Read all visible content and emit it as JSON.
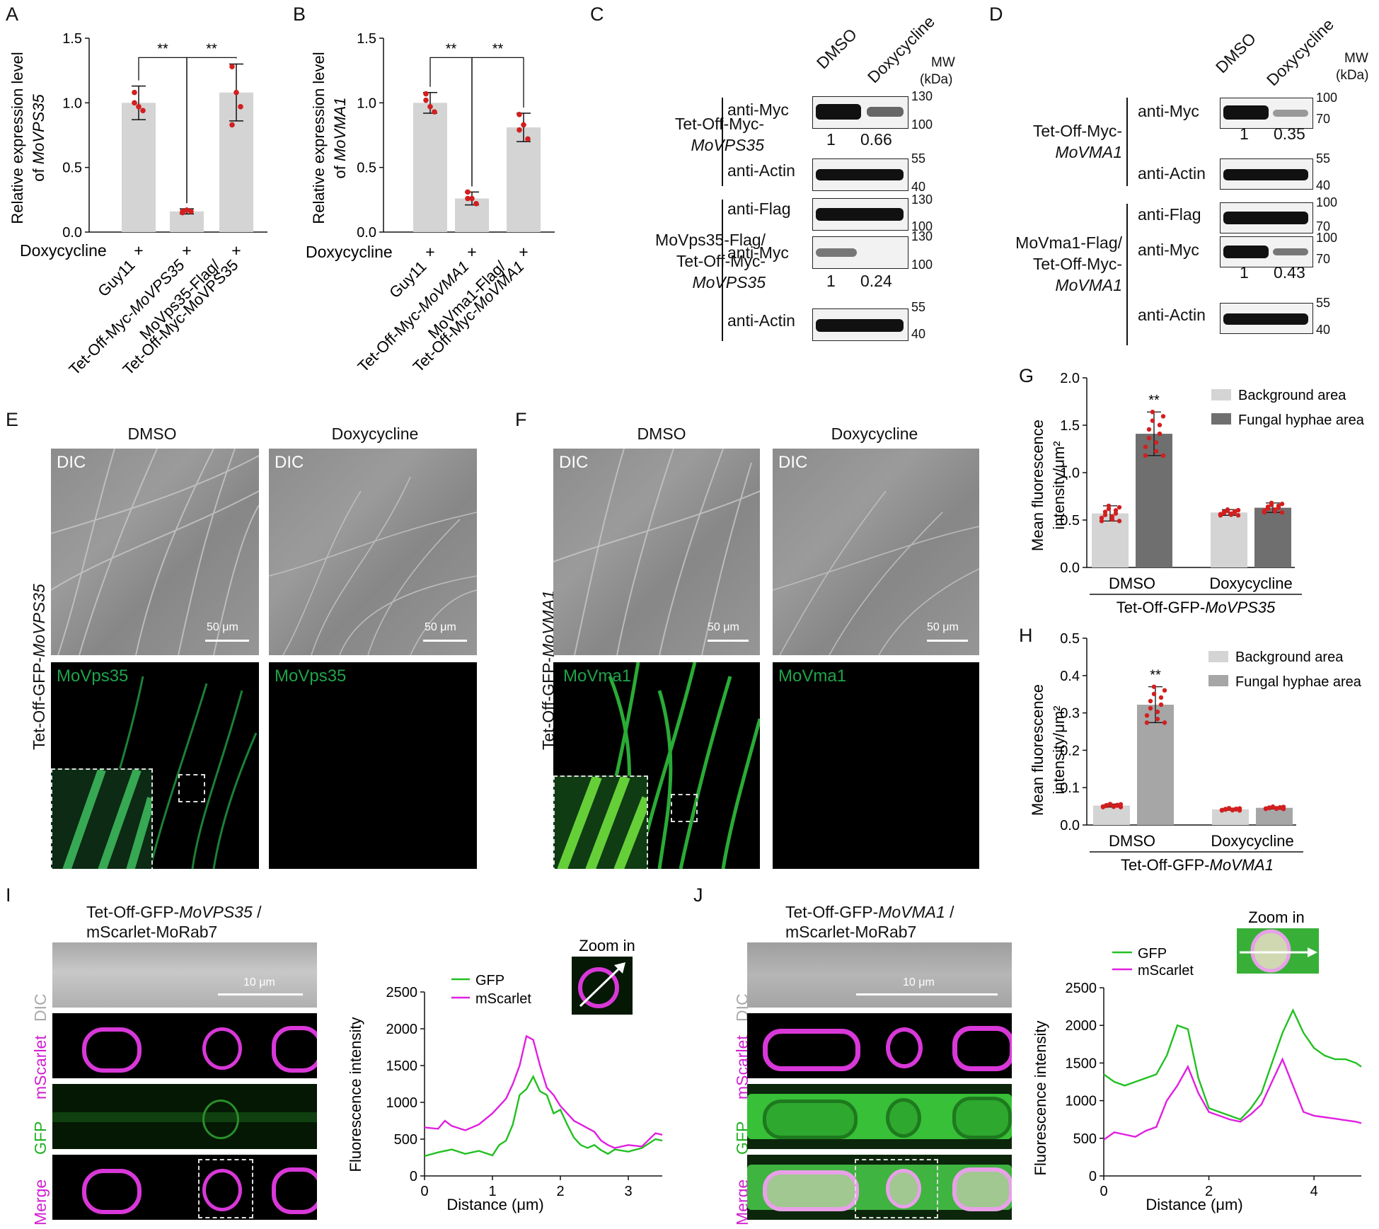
{
  "panels": {
    "A": "A",
    "B": "B",
    "C": "C",
    "D": "D",
    "E": "E",
    "F": "F",
    "G": "G",
    "H": "H",
    "I": "I",
    "J": "J"
  },
  "panelA": {
    "ylabel_line1": "Relative expression level",
    "ylabel_line2_prefix": "of ",
    "ylabel_line2_gene": "MoVPS35",
    "treatment_label": "Doxycycline",
    "treatment_marks": [
      "+",
      "+",
      "+"
    ],
    "sig": [
      "**",
      "**"
    ],
    "cat1": "Guy11",
    "cat2_prefix": "Tet-Off-Myc-",
    "cat2_gene": "MoVPS35",
    "cat3_line1": "MoVps35-Flag/",
    "cat3_line2": "Tet-Off-Myc-MoVPS35",
    "yticks": [
      "0.0",
      "0.5",
      "1.0",
      "1.5"
    ]
  },
  "panelB": {
    "ylabel_line1": "Relative expression level",
    "ylabel_line2_prefix": "of ",
    "ylabel_line2_gene": "MoVMA1",
    "treatment_label": "Doxycycline",
    "treatment_marks": [
      "+",
      "+",
      "+"
    ],
    "sig": [
      "**",
      "**"
    ],
    "cat1": "Guy11",
    "cat2_prefix": "Tet-Off-Myc-",
    "cat2_gene": "MoVMA1",
    "cat3_line1": "MoVma1-Flag/",
    "cat3_line2_prefix": "Tet-Off-Myc-",
    "cat3_line2_gene": "MoVMA1",
    "yticks": [
      "0.0",
      "0.5",
      "1.0",
      "1.5"
    ]
  },
  "panelC": {
    "lanes": [
      "DMSO",
      "Doxycycline"
    ],
    "mw_line1": "MW",
    "mw_line2": "(kDa)",
    "strain1_line1": "Tet-Off-Myc-",
    "strain1_line2": "MoVPS35",
    "strain2_line1": "MoVps35-Flag/",
    "strain2_line2": "Tet-Off-Myc-",
    "strain2_line3": "MoVPS35",
    "blots": [
      {
        "label": "anti-Myc",
        "mw_top": "130",
        "mw_bot": "100",
        "quant": [
          "1",
          "0.66"
        ]
      },
      {
        "label": "anti-Actin",
        "mw_top": "55",
        "mw_bot": "40"
      },
      {
        "label": "anti-Flag",
        "mw_top": "130",
        "mw_bot": "100"
      },
      {
        "label": "anti-Myc",
        "mw_top": "130",
        "mw_bot": "100",
        "quant": [
          "1",
          "0.24"
        ]
      },
      {
        "label": "anti-Actin",
        "mw_top": "55",
        "mw_bot": "40"
      }
    ]
  },
  "panelD": {
    "lanes": [
      "DMSO",
      "Doxycycline"
    ],
    "mw_line1": "MW",
    "mw_line2": "(kDa)",
    "strain1_line1": "Tet-Off-Myc-",
    "strain1_line2": "MoVMA1",
    "strain2_line1": "MoVma1-Flag/",
    "strain2_line2": "Tet-Off-Myc-",
    "strain2_line3": "MoVMA1",
    "blots": [
      {
        "label": "anti-Myc",
        "mw_top": "100",
        "mw_bot": "70",
        "quant": [
          "1",
          "0.35"
        ]
      },
      {
        "label": "anti-Actin",
        "mw_top": "55",
        "mw_bot": "40"
      },
      {
        "label": "anti-Flag",
        "mw_top": "100",
        "mw_bot": "70"
      },
      {
        "label": "anti-Myc",
        "mw_top": "100",
        "mw_bot": "70",
        "quant": [
          "1",
          "0.43"
        ]
      },
      {
        "label": "anti-Actin",
        "mw_top": "55",
        "mw_bot": "40"
      }
    ]
  },
  "panelE": {
    "col1": "DMSO",
    "col2": "Doxycycline",
    "row_label_prefix": "Tet-Off-GFP-",
    "row_label_gene": "MoVPS35",
    "dic": "DIC",
    "protein": "MoVps35",
    "scale": "50 μm"
  },
  "panelF": {
    "col1": "DMSO",
    "col2": "Doxycycline",
    "row_label_prefix": "Tet-Off-GFP-",
    "row_label_gene": "MoVMA1",
    "dic": "DIC",
    "protein": "MoVma1",
    "scale": "50 μm"
  },
  "panelG": {
    "ylabel_line1": "Mean fluorescence",
    "ylabel_line2": "intensity/μm²",
    "legend": [
      "Background area",
      "Fungal hyphae area"
    ],
    "groups": [
      "DMSO",
      "Doxycycline"
    ],
    "strain_prefix": "Tet-Off-GFP-",
    "strain_gene": "MoVPS35",
    "sig": "**",
    "yticks": [
      "0.0",
      "0.5",
      "1.0",
      "1.5",
      "2.0"
    ]
  },
  "panelH": {
    "ylabel_line1": "Mean fluorescence",
    "ylabel_line2": "intensity/μm²",
    "legend": [
      "Background area",
      "Fungal hyphae area"
    ],
    "groups": [
      "DMSO",
      "Doxycycline"
    ],
    "strain_prefix": "Tet-Off-GFP-",
    "strain_gene": "MoVMA1",
    "sig": "**",
    "yticks": [
      "0.0",
      "0.1",
      "0.2",
      "0.3",
      "0.4",
      "0.5"
    ]
  },
  "panelI": {
    "title_prefix": "Tet-Off-GFP-",
    "title_gene": "MoVPS35",
    "title_suffix": " /",
    "title_line2": "mScarlet-MoRab7",
    "channels": [
      "DIC",
      "mScarlet",
      "GFP",
      "Merge"
    ],
    "scale": "10 μm",
    "zoom": "Zoom in",
    "ylabel": "Fluorescence intensity",
    "xlabel": "Distance (μm)",
    "legend": [
      "GFP",
      "mScarlet"
    ],
    "yticks": [
      "0",
      "500",
      "1000",
      "1500",
      "2000",
      "2500"
    ],
    "xticks": [
      "0",
      "1",
      "2",
      "3"
    ]
  },
  "panelJ": {
    "title_prefix": "Tet-Off-GFP-",
    "title_gene": "MoVMA1",
    "title_suffix": " /",
    "title_line2": "mScarlet-MoRab7",
    "channels": [
      "DIC",
      "mScarlet",
      "GFP",
      "Merge"
    ],
    "scale": "10 μm",
    "zoom": "Zoom in",
    "ylabel": "Fluorescence intensity",
    "xlabel": "Distance (μm)",
    "legend": [
      "GFP",
      "mScarlet"
    ],
    "yticks": [
      "0",
      "500",
      "1000",
      "1500",
      "2000",
      "2500"
    ],
    "xticks": [
      "0",
      "2",
      "4"
    ]
  },
  "colors": {
    "bar_light": "#d4d4d4",
    "bar_dark": "#6f6f6f",
    "bar_mid": "#a6a6a6",
    "dots": "#d21f1f",
    "gfp": "#22c022",
    "mscarlet": "#e020e0"
  },
  "chart_data": [
    {
      "type": "bar",
      "panel": "A",
      "categories": [
        "Guy11",
        "Tet-Off-Myc-MoVPS35",
        "MoVps35-Flag/Tet-Off-Myc-MoVPS35"
      ],
      "values": [
        1.0,
        0.16,
        1.08
      ],
      "errors": [
        0.13,
        0.02,
        0.22
      ],
      "points": [
        [
          1.08,
          0.97,
          0.94,
          1.0
        ],
        [
          0.15,
          0.17,
          0.16,
          0.16
        ],
        [
          1.28,
          1.08,
          0.97,
          0.83
        ]
      ],
      "ylim": [
        0,
        1.5
      ]
    },
    {
      "type": "bar",
      "panel": "B",
      "categories": [
        "Guy11",
        "Tet-Off-Myc-MoVMA1",
        "MoVma1-Flag/Tet-Off-Myc-MoVMA1"
      ],
      "values": [
        1.0,
        0.26,
        0.81
      ],
      "errors": [
        0.08,
        0.05,
        0.11
      ],
      "points": [
        [
          1.07,
          0.97,
          0.93,
          1.02
        ],
        [
          0.31,
          0.26,
          0.22,
          0.26
        ],
        [
          0.91,
          0.83,
          0.72,
          0.79
        ]
      ],
      "ylim": [
        0,
        1.5
      ]
    },
    {
      "type": "bar",
      "panel": "G",
      "categories": [
        "DMSO",
        "Doxycycline"
      ],
      "series": [
        {
          "name": "Background area",
          "values": [
            0.57,
            0.58
          ],
          "errors": [
            0.08,
            0.03
          ]
        },
        {
          "name": "Fungal hyphae area",
          "values": [
            1.41,
            0.63
          ],
          "errors": [
            0.23,
            0.05
          ]
        }
      ],
      "ylim": [
        0,
        2.0
      ]
    },
    {
      "type": "bar",
      "panel": "H",
      "categories": [
        "DMSO",
        "Doxycycline"
      ],
      "series": [
        {
          "name": "Background area",
          "values": [
            0.052,
            0.042
          ],
          "errors": [
            0.004,
            0.003
          ]
        },
        {
          "name": "Fungal hyphae area",
          "values": [
            0.322,
            0.046
          ],
          "errors": [
            0.048,
            0.003
          ]
        }
      ],
      "ylim": [
        0,
        0.5
      ]
    },
    {
      "type": "line",
      "panel": "I",
      "xlim": [
        0,
        3.5
      ],
      "ylim": [
        0,
        2500
      ],
      "series": [
        {
          "name": "GFP",
          "x": [
            0,
            0.2,
            0.4,
            0.6,
            0.8,
            1.0,
            1.1,
            1.2,
            1.3,
            1.4,
            1.5,
            1.6,
            1.7,
            1.8,
            1.9,
            2.0,
            2.1,
            2.2,
            2.3,
            2.4,
            2.5,
            2.6,
            2.7,
            2.8,
            3.0,
            3.2,
            3.4,
            3.5
          ],
          "values": [
            270,
            320,
            360,
            300,
            340,
            280,
            420,
            480,
            700,
            1100,
            1180,
            1350,
            1150,
            1100,
            850,
            900,
            700,
            520,
            420,
            380,
            420,
            350,
            300,
            360,
            330,
            380,
            500,
            480
          ]
        },
        {
          "name": "mScarlet",
          "x": [
            0,
            0.2,
            0.3,
            0.4,
            0.6,
            0.8,
            1.0,
            1.1,
            1.2,
            1.3,
            1.4,
            1.5,
            1.6,
            1.7,
            1.8,
            1.9,
            2.0,
            2.1,
            2.2,
            2.3,
            2.4,
            2.5,
            2.6,
            2.7,
            2.8,
            3.0,
            3.2,
            3.4,
            3.5
          ],
          "values": [
            660,
            640,
            750,
            680,
            620,
            700,
            850,
            950,
            1050,
            1250,
            1500,
            1900,
            1850,
            1500,
            1200,
            1100,
            950,
            850,
            750,
            700,
            650,
            600,
            480,
            420,
            380,
            420,
            400,
            580,
            560
          ]
        }
      ]
    },
    {
      "type": "line",
      "panel": "J",
      "xlim": [
        0,
        4.9
      ],
      "ylim": [
        0,
        2500
      ],
      "series": [
        {
          "name": "GFP",
          "x": [
            0,
            0.2,
            0.4,
            0.6,
            0.8,
            1.0,
            1.2,
            1.4,
            1.6,
            1.8,
            2.0,
            2.2,
            2.4,
            2.6,
            2.8,
            3.0,
            3.2,
            3.4,
            3.6,
            3.8,
            4.0,
            4.2,
            4.4,
            4.6,
            4.8,
            4.9
          ],
          "values": [
            1350,
            1250,
            1200,
            1250,
            1300,
            1350,
            1600,
            2000,
            1950,
            1300,
            900,
            850,
            800,
            750,
            900,
            1100,
            1500,
            1900,
            2200,
            1900,
            1700,
            1600,
            1550,
            1550,
            1500,
            1450
          ]
        },
        {
          "name": "mScarlet",
          "x": [
            0,
            0.2,
            0.4,
            0.6,
            0.8,
            1.0,
            1.2,
            1.4,
            1.6,
            1.8,
            2.0,
            2.2,
            2.4,
            2.6,
            2.8,
            3.0,
            3.2,
            3.4,
            3.6,
            3.8,
            4.0,
            4.2,
            4.4,
            4.6,
            4.8,
            4.9
          ],
          "values": [
            480,
            580,
            550,
            520,
            600,
            650,
            1000,
            1200,
            1450,
            1100,
            850,
            800,
            750,
            720,
            820,
            950,
            1250,
            1550,
            1200,
            850,
            800,
            780,
            760,
            740,
            720,
            700
          ]
        }
      ]
    }
  ]
}
